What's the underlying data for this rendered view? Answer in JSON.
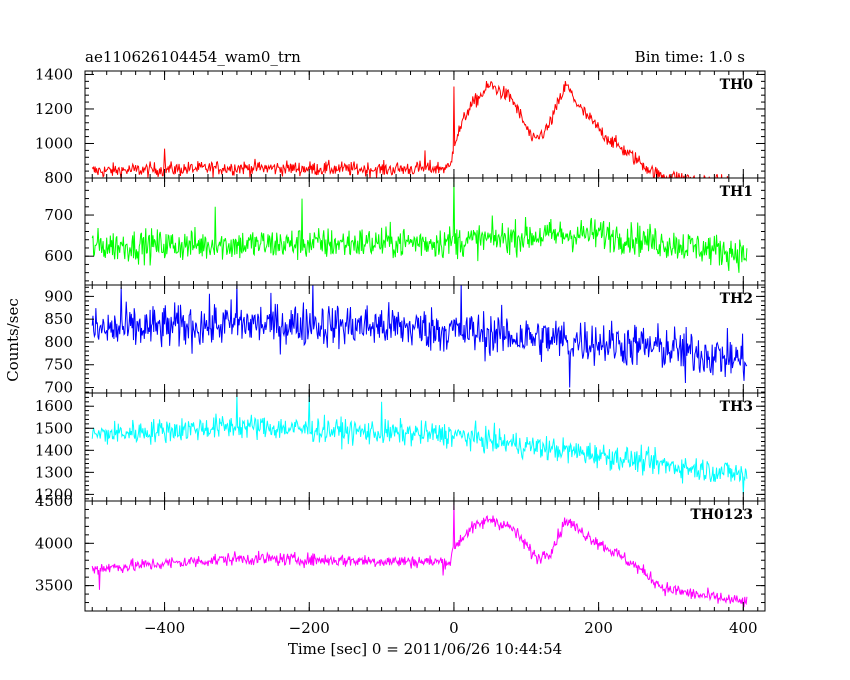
{
  "title": "ae110626104454_wam0_trn",
  "bin_time": "Bin time: 1.0 s",
  "chart_data": {
    "type": "line",
    "xlabel": "Time [sec] 0 = 2011/06/26 10:44:54",
    "ylabel": "Counts/sec",
    "xlim": [
      -510,
      430
    ],
    "data_xrange": [
      -500,
      405
    ],
    "xticks": [
      -400,
      -200,
      0,
      200,
      400
    ],
    "x_step": 1.0,
    "panels": [
      {
        "name": "TH0",
        "color": "#ff0000",
        "ylim": [
          800,
          1420
        ],
        "yticks": [
          800,
          1000,
          1200,
          1400
        ],
        "noise": 30,
        "spikes": [
          [
            0,
            1330
          ],
          [
            -40,
            960
          ],
          [
            -400,
            970
          ]
        ],
        "profile": [
          [
            -500,
            840
          ],
          [
            -300,
            860
          ],
          [
            -100,
            850
          ],
          [
            -5,
            860
          ],
          [
            0,
            1000
          ],
          [
            20,
            1200
          ],
          [
            50,
            1340
          ],
          [
            80,
            1260
          ],
          [
            110,
            1010
          ],
          [
            130,
            1090
          ],
          [
            155,
            1340
          ],
          [
            175,
            1200
          ],
          [
            210,
            1040
          ],
          [
            245,
            930
          ],
          [
            280,
            820
          ],
          [
            330,
            790
          ],
          [
            405,
            760
          ]
        ]
      },
      {
        "name": "TH1",
        "color": "#00ff00",
        "ylim": [
          530,
          790
        ],
        "yticks": [
          600,
          700
        ],
        "noise": 28,
        "spikes": [
          [
            0,
            790
          ],
          [
            -210,
            740
          ],
          [
            -330,
            720
          ]
        ],
        "profile": [
          [
            -500,
            625
          ],
          [
            -200,
            630
          ],
          [
            0,
            635
          ],
          [
            100,
            648
          ],
          [
            200,
            655
          ],
          [
            300,
            630
          ],
          [
            405,
            605
          ]
        ]
      },
      {
        "name": "TH2",
        "color": "#0000ff",
        "ylim": [
          688,
          925
        ],
        "yticks": [
          700,
          750,
          800,
          850,
          900
        ],
        "noise": 35,
        "spikes": [
          [
            -460,
            920
          ],
          [
            -300,
            930
          ],
          [
            -195,
            930
          ],
          [
            10,
            930
          ],
          [
            160,
            700
          ],
          [
            320,
            710
          ]
        ],
        "profile": [
          [
            -500,
            825
          ],
          [
            -300,
            840
          ],
          [
            -100,
            835
          ],
          [
            0,
            825
          ],
          [
            100,
            810
          ],
          [
            200,
            800
          ],
          [
            300,
            785
          ],
          [
            405,
            760
          ]
        ]
      },
      {
        "name": "TH3",
        "color": "#00ffff",
        "ylim": [
          1170,
          1660
        ],
        "yticks": [
          1200,
          1300,
          1400,
          1500,
          1600
        ],
        "noise": 40,
        "spikes": [
          [
            -300,
            1650
          ],
          [
            -200,
            1650
          ],
          [
            -100,
            1620
          ],
          [
            400,
            1200
          ]
        ],
        "profile": [
          [
            -500,
            1470
          ],
          [
            -300,
            1510
          ],
          [
            -100,
            1480
          ],
          [
            0,
            1470
          ],
          [
            100,
            1420
          ],
          [
            200,
            1380
          ],
          [
            300,
            1330
          ],
          [
            405,
            1290
          ]
        ]
      },
      {
        "name": "TH0123",
        "color": "#ff00ff",
        "ylim": [
          3200,
          4500
        ],
        "yticks": [
          3500,
          4000,
          4500
        ],
        "noise": 55,
        "spikes": [
          [
            0,
            4480
          ],
          [
            -490,
            3450
          ],
          [
            -15,
            3620
          ]
        ],
        "profile": [
          [
            -500,
            3700
          ],
          [
            -300,
            3820
          ],
          [
            -100,
            3790
          ],
          [
            -5,
            3780
          ],
          [
            0,
            3950
          ],
          [
            20,
            4150
          ],
          [
            50,
            4290
          ],
          [
            80,
            4180
          ],
          [
            115,
            3820
          ],
          [
            135,
            3920
          ],
          [
            155,
            4280
          ],
          [
            175,
            4140
          ],
          [
            215,
            3930
          ],
          [
            250,
            3740
          ],
          [
            290,
            3470
          ],
          [
            330,
            3400
          ],
          [
            405,
            3300
          ]
        ]
      }
    ]
  }
}
